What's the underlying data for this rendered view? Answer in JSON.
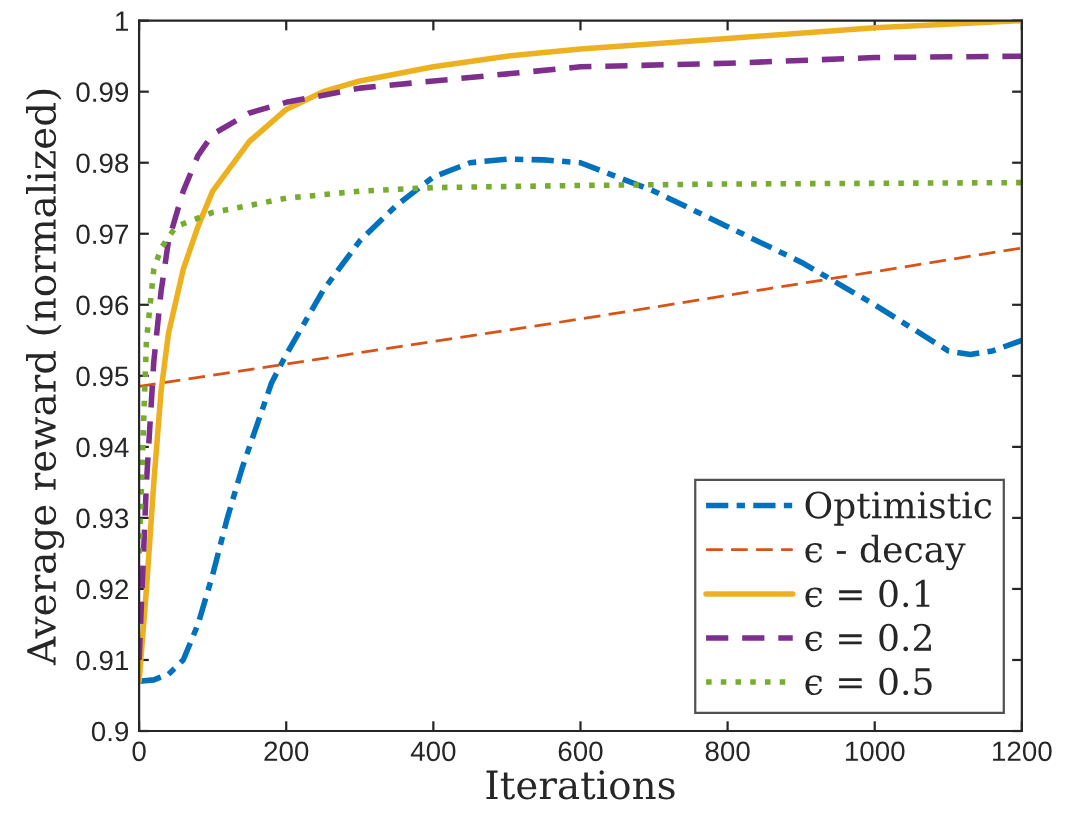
{
  "chart_data": {
    "type": "line",
    "xlabel": "Iterations",
    "ylabel": "Average reward (normalized)",
    "xlim": [
      0,
      1200
    ],
    "xticks": [
      0,
      200,
      400,
      600,
      800,
      1000,
      1200
    ],
    "ylim": [
      0.9,
      1
    ],
    "yticks": [
      0.9,
      0.91,
      0.92,
      0.93,
      0.94,
      0.95,
      0.96,
      0.97,
      0.98,
      0.99,
      1
    ],
    "grid": false,
    "legend": "bottom right",
    "marker": "none",
    "series": [
      {
        "name": "Optimistic",
        "color": "#0072bd",
        "line_style": "dashdot",
        "x": [
          0,
          20,
          40,
          60,
          80,
          100,
          120,
          140,
          160,
          180,
          200,
          250,
          300,
          350,
          400,
          450,
          500,
          550,
          600,
          650,
          700,
          800,
          900,
          1000,
          1100,
          1130,
          1160,
          1200
        ],
        "values": [
          0.907,
          0.9072,
          0.908,
          0.91,
          0.915,
          0.922,
          0.93,
          0.937,
          0.943,
          0.949,
          0.953,
          0.962,
          0.969,
          0.974,
          0.978,
          0.98,
          0.9805,
          0.9804,
          0.98,
          0.978,
          0.976,
          0.971,
          0.966,
          0.96,
          0.9535,
          0.953,
          0.9535,
          0.955
        ]
      },
      {
        "name": "ϵ - decay",
        "color": "#d95319",
        "line_style": "dashed",
        "x": [
          0,
          600,
          1200
        ],
        "values": [
          0.9485,
          0.958,
          0.968
        ]
      },
      {
        "name": "ϵ = 0.1",
        "color": "#edb120",
        "line_style": "solid",
        "x": [
          0,
          10,
          20,
          30,
          40,
          60,
          80,
          100,
          150,
          200,
          250,
          300,
          400,
          500,
          600,
          800,
          1000,
          1200
        ],
        "values": [
          0.907,
          0.92,
          0.935,
          0.948,
          0.956,
          0.965,
          0.971,
          0.976,
          0.983,
          0.9875,
          0.99,
          0.9915,
          0.9935,
          0.995,
          0.996,
          0.9975,
          0.999,
          1.0
        ]
      },
      {
        "name": "ϵ = 0.2",
        "color": "#7e2f8e",
        "line_style": "dashed",
        "x": [
          0,
          10,
          20,
          30,
          40,
          60,
          80,
          100,
          150,
          200,
          300,
          400,
          600,
          800,
          1000,
          1200
        ],
        "values": [
          0.91,
          0.935,
          0.952,
          0.962,
          0.969,
          0.976,
          0.981,
          0.984,
          0.987,
          0.9885,
          0.9905,
          0.9915,
          0.9935,
          0.994,
          0.9948,
          0.995
        ]
      },
      {
        "name": "ϵ = 0.5",
        "color": "#77ac30",
        "line_style": "dotted",
        "x": [
          0,
          5,
          10,
          20,
          30,
          50,
          100,
          200,
          300,
          400,
          600,
          800,
          1200
        ],
        "values": [
          0.925,
          0.94,
          0.955,
          0.965,
          0.968,
          0.971,
          0.973,
          0.975,
          0.976,
          0.9765,
          0.9768,
          0.977,
          0.9772
        ]
      }
    ]
  }
}
